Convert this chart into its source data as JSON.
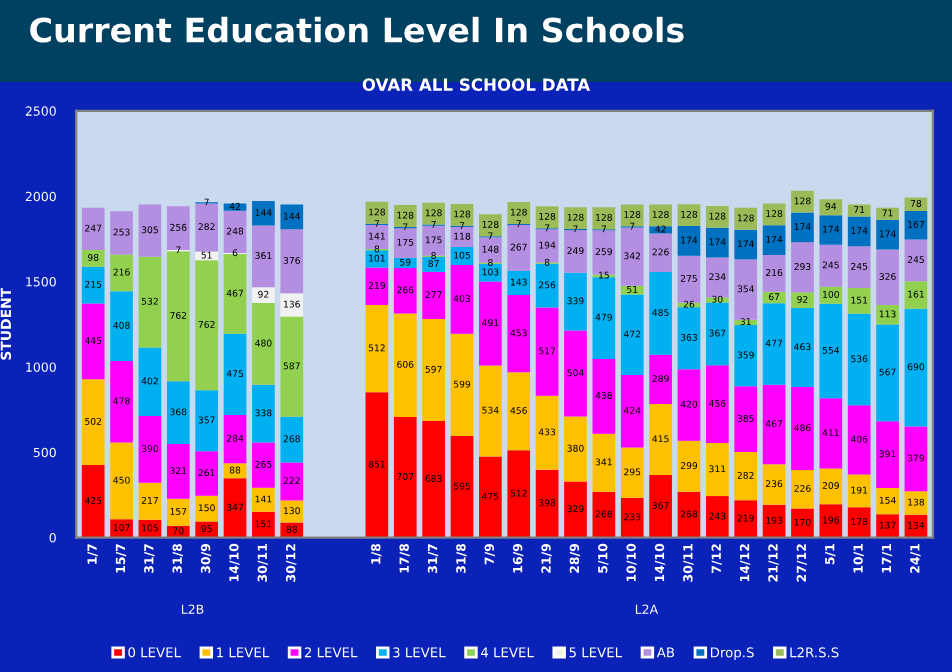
{
  "chart_data": {
    "type": "bar",
    "stacked": true,
    "title": "Current Education Level In Schools",
    "subtitle": "OVAR ALL SCHOOL DATA",
    "ylabel": "STUDENT",
    "categories": [
      "1/7",
      "15/7",
      "31/7",
      "31/8",
      "30/9",
      "14/10",
      "30/11",
      "30/12",
      null,
      null,
      "1/8",
      "17/8",
      "31/7",
      "31/8",
      "7/9",
      "16/9",
      "21/9",
      "28/9",
      "5/10",
      "10/10",
      "14/10",
      "30/11",
      "7/12",
      "14/12",
      "21/12",
      "27/12",
      "5/1",
      "10/1",
      "17/1",
      "24/1"
    ],
    "annotations": [
      "L2B",
      "L2A"
    ],
    "ylim": [
      0,
      2500
    ],
    "yticks": [
      0,
      500,
      1000,
      1500,
      2000,
      2500
    ],
    "legend": "bottom",
    "data_labels": true,
    "series": [
      {
        "name": "0 LEVEL",
        "color": "#ff0000",
        "values": [
          425,
          107,
          105,
          70,
          95,
          347,
          151,
          88,
          null,
          null,
          851,
          707,
          683,
          595,
          475,
          512,
          398,
          329,
          268,
          233,
          367,
          268,
          243,
          219,
          193,
          170,
          196,
          178,
          137,
          134
        ]
      },
      {
        "name": "1 LEVEL",
        "color": "#ffc000",
        "values": [
          502,
          450,
          217,
          157,
          150,
          88,
          141,
          130,
          null,
          null,
          512,
          606,
          597,
          599,
          534,
          456,
          433,
          380,
          341,
          295,
          415,
          299,
          311,
          282,
          236,
          226,
          209,
          191,
          154,
          138
        ]
      },
      {
        "name": "2 LEVEL",
        "color": "#ff00ff",
        "values": [
          445,
          478,
          390,
          321,
          261,
          284,
          265,
          222,
          null,
          null,
          219,
          266,
          277,
          403,
          491,
          453,
          517,
          504,
          438,
          424,
          289,
          420,
          456,
          385,
          467,
          486,
          411,
          406,
          391,
          379
        ]
      },
      {
        "name": "3 LEVEL",
        "color": "#00b0f0",
        "values": [
          215,
          408,
          402,
          368,
          357,
          475,
          338,
          268,
          null,
          null,
          101,
          59,
          87,
          105,
          103,
          143,
          256,
          339,
          479,
          472,
          485,
          363,
          367,
          359,
          477,
          463,
          554,
          536,
          567,
          690
        ]
      },
      {
        "name": "4 LEVEL",
        "color": "#92d050",
        "values": [
          98,
          216,
          532,
          762,
          762,
          467,
          480,
          587,
          null,
          null,
          8,
          null,
          8,
          null,
          8,
          null,
          8,
          null,
          15,
          51,
          null,
          26,
          30,
          31,
          67,
          92,
          100,
          151,
          113,
          161
        ]
      },
      {
        "name": "5 LEVEL",
        "color": "#f2f2f2",
        "values": [
          null,
          null,
          null,
          7,
          51,
          6,
          92,
          136,
          null,
          null,
          null,
          null,
          null,
          null,
          null,
          null,
          null,
          null,
          null,
          null,
          null,
          null,
          null,
          null,
          null,
          null,
          null,
          null,
          null,
          null
        ]
      },
      {
        "name": "AB",
        "color": "#b48ee0",
        "values": [
          247,
          253,
          305,
          256,
          282,
          248,
          361,
          376,
          null,
          null,
          141,
          175,
          175,
          118,
          148,
          267,
          194,
          249,
          259,
          342,
          226,
          275,
          234,
          354,
          216,
          293,
          245,
          245,
          326,
          245
        ]
      },
      {
        "name": "Drop.S",
        "color": "#0070c0",
        "values": [
          null,
          null,
          null,
          null,
          7,
          42,
          144,
          144,
          null,
          null,
          7,
          7,
          7,
          7,
          7,
          7,
          7,
          7,
          7,
          7,
          42,
          174,
          174,
          174,
          174,
          174,
          174,
          174,
          174,
          167
        ]
      },
      {
        "name": "L2R.S.S",
        "color": "#9bbb59",
        "values": [
          null,
          null,
          null,
          null,
          null,
          null,
          null,
          null,
          null,
          null,
          128,
          128,
          128,
          128,
          128,
          128,
          128,
          128,
          128,
          128,
          128,
          128,
          128,
          128,
          128,
          128,
          94,
          71,
          71,
          78
        ]
      }
    ]
  }
}
